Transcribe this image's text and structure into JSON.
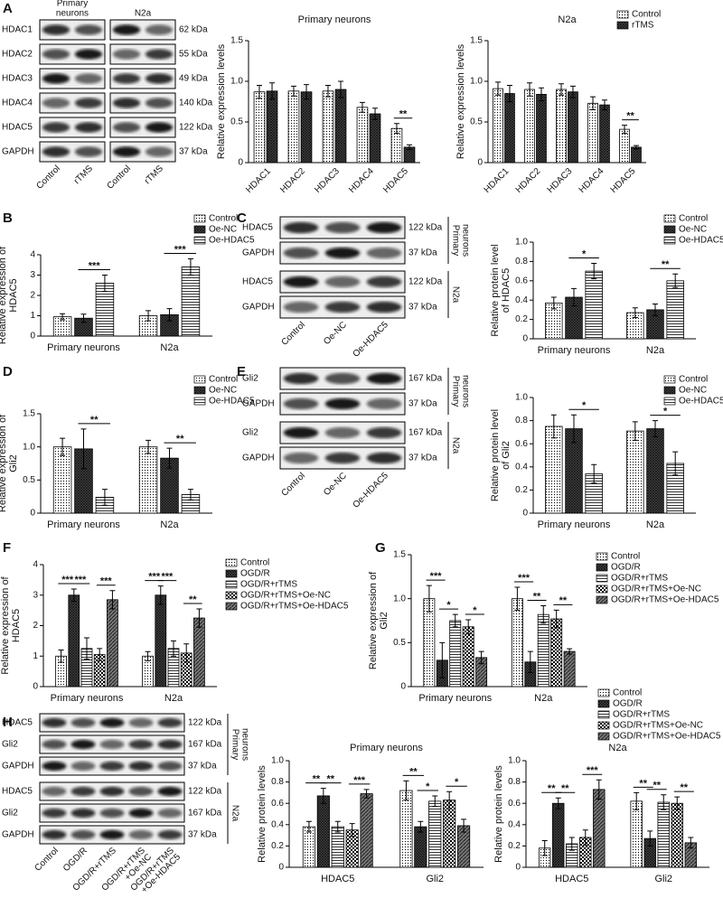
{
  "panel_labels": [
    "A",
    "B",
    "C",
    "D",
    "E",
    "F",
    "G",
    "H"
  ],
  "blots": [
    {
      "rows": [
        {
          "protein": "HDAC1",
          "size": "62 kDa"
        },
        {
          "protein": "HDAC2",
          "size": "55 kDa"
        },
        {
          "protein": "HDAC3",
          "size": "49 kDa"
        },
        {
          "protein": "HDAC4",
          "size": "140 kDa"
        },
        {
          "protein": "HDAC5",
          "size": "122 kDa"
        },
        {
          "protein": "GAPDH",
          "size": "37 kDa"
        }
      ],
      "lanes": [
        [
          "Control"
        ],
        [
          "rTMS"
        ],
        [
          "Control"
        ],
        [
          "rTMS"
        ]
      ],
      "groups": [
        [
          "Primary",
          "neurons"
        ],
        [
          "N2a"
        ]
      ]
    },
    {
      "rows": [
        {
          "protein": "HDAC5",
          "size": "122 kDa"
        },
        {
          "protein": "GAPDH",
          "size": "37 kDa"
        },
        {
          "protein": "HDAC5",
          "size": "122 kDa"
        },
        {
          "protein": "GAPDH",
          "size": "37 kDa"
        }
      ],
      "lanes": [
        [
          "Control"
        ],
        [
          "Oe-NC"
        ],
        [
          "Oe-HDAC5"
        ]
      ],
      "groups": [
        [
          "Primary",
          "neurons"
        ],
        [
          "N2a"
        ]
      ]
    },
    {
      "rows": [
        {
          "protein": "Gli2",
          "size": "167 kDa"
        },
        {
          "protein": "GAPDH",
          "size": "37 kDa"
        },
        {
          "protein": "Gli2",
          "size": "167 kDa"
        },
        {
          "protein": "GAPDH",
          "size": "37 kDa"
        }
      ],
      "lanes": [
        [
          "Control"
        ],
        [
          "Oe-NC"
        ],
        [
          "Oe-HDAC5"
        ]
      ],
      "groups": [
        [
          "Primary",
          "neurons"
        ],
        [
          "N2a"
        ]
      ]
    },
    {
      "rows": [
        {
          "protein": "HDAC5",
          "size": "122 kDa"
        },
        {
          "protein": "Gli2",
          "size": "167 kDa"
        },
        {
          "protein": "GAPDH",
          "size": "37 kDa"
        },
        {
          "protein": "HDAC5",
          "size": "122 kDa"
        },
        {
          "protein": "Gli2",
          "size": "167 kDa"
        },
        {
          "protein": "GAPDH",
          "size": "37 kDa"
        }
      ],
      "lanes": [
        [
          "Control"
        ],
        [
          "OGD/R"
        ],
        [
          "OGD/R+rTMS"
        ],
        [
          "OGD/R+rTMS",
          "+Oe-NC"
        ],
        [
          "OGD/R+rTMS",
          "+Oe-HDAC5"
        ]
      ],
      "groups": [
        [
          "Primary",
          "neurons"
        ],
        [
          "N2a"
        ]
      ]
    }
  ],
  "chart_data": [
    {
      "type": "bar",
      "title": "Primary neurons",
      "ylabel": [
        "Relative expression levels"
      ],
      "categories": [
        "HDAC1",
        "HDAC2",
        "HDAC3",
        "HDAC4",
        "HDAC5"
      ],
      "ylim": [
        0,
        1.5
      ],
      "yticks": [
        0,
        0.5,
        {
          "value": 1,
          "label": "1.0"
        },
        1.5
      ],
      "legend": false,
      "series": [
        {
          "name": "Control",
          "pattern": "dots",
          "values": [
            0.87,
            0.88,
            0.88,
            0.68,
            0.42
          ],
          "errors": [
            0.08,
            0.06,
            0.07,
            0.06,
            0.06
          ]
        },
        {
          "name": "rTMS",
          "pattern": "crosshatch",
          "values": [
            0.88,
            0.87,
            0.9,
            0.6,
            0.19
          ],
          "errors": [
            0.1,
            0.09,
            0.1,
            0.07,
            0.03
          ]
        }
      ],
      "significance": [
        {
          "category": 4,
          "from": 0,
          "to": 1,
          "label": "**"
        }
      ]
    },
    {
      "type": "bar",
      "title": "N2a",
      "ylabel": [
        "Relative expression levels"
      ],
      "categories": [
        "HDAC1",
        "HDAC2",
        "HDAC3",
        "HDAC4",
        "HDAC5"
      ],
      "ylim": [
        0,
        1.5
      ],
      "yticks": [
        0,
        0.5,
        {
          "value": 1,
          "label": "1.0"
        },
        1.5
      ],
      "legend": true,
      "series": [
        {
          "name": "Control",
          "pattern": "dots",
          "values": [
            0.91,
            0.9,
            0.9,
            0.73,
            0.41
          ],
          "errors": [
            0.08,
            0.08,
            0.07,
            0.08,
            0.05
          ]
        },
        {
          "name": "rTMS",
          "pattern": "crosshatch",
          "values": [
            0.85,
            0.84,
            0.87,
            0.71,
            0.19
          ],
          "errors": [
            0.1,
            0.08,
            0.07,
            0.06,
            0.02
          ]
        }
      ],
      "significance": [
        {
          "category": 4,
          "from": 0,
          "to": 1,
          "label": "**"
        }
      ]
    },
    {
      "type": "bar",
      "ylabel": [
        "Relative expression of",
        "HDAC5"
      ],
      "categories": [
        "Primary neurons",
        "N2a"
      ],
      "ylim": [
        0,
        4
      ],
      "yticks": [
        0,
        1,
        2,
        3,
        4
      ],
      "legend": true,
      "series": [
        {
          "name": "Control",
          "pattern": "dots",
          "values": [
            0.95,
            1.0
          ],
          "errors": [
            0.15,
            0.25
          ]
        },
        {
          "name": "Oe-NC",
          "pattern": "crosshatch",
          "values": [
            0.88,
            1.05
          ],
          "errors": [
            0.2,
            0.3
          ]
        },
        {
          "name": "Oe-HDAC5",
          "pattern": "hlines",
          "values": [
            2.6,
            3.4
          ],
          "errors": [
            0.4,
            0.4
          ]
        }
      ],
      "significance": [
        {
          "category": 0,
          "from": 1,
          "to": 2,
          "label": "***"
        },
        {
          "category": 1,
          "from": 1,
          "to": 2,
          "label": "***"
        }
      ]
    },
    {
      "type": "bar",
      "ylabel": [
        "Relative protein level",
        "of HDAC5"
      ],
      "categories": [
        "Primary neurons",
        "N2a"
      ],
      "ylim": [
        0,
        1
      ],
      "yticks": [
        0,
        0.2,
        0.4,
        0.6,
        0.8,
        {
          "value": 1,
          "label": "1.0"
        }
      ],
      "legend": true,
      "series": [
        {
          "name": "Control",
          "pattern": "dots",
          "values": [
            0.37,
            0.27
          ],
          "errors": [
            0.06,
            0.05
          ]
        },
        {
          "name": "Oe-NC",
          "pattern": "crosshatch",
          "values": [
            0.43,
            0.3
          ],
          "errors": [
            0.09,
            0.06
          ]
        },
        {
          "name": "Oe-HDAC5",
          "pattern": "hlines",
          "values": [
            0.7,
            0.6
          ],
          "errors": [
            0.08,
            0.07
          ]
        }
      ],
      "significance": [
        {
          "category": 0,
          "from": 1,
          "to": 2,
          "label": "*"
        },
        {
          "category": 1,
          "from": 1,
          "to": 2,
          "label": "**"
        }
      ]
    },
    {
      "type": "bar",
      "ylabel": [
        "Relative expression of",
        "Gli2"
      ],
      "categories": [
        "Primary neurons",
        "N2a"
      ],
      "ylim": [
        0,
        1.5
      ],
      "yticks": [
        0,
        0.5,
        {
          "value": 1,
          "label": "1.0"
        },
        1.5
      ],
      "legend": true,
      "series": [
        {
          "name": "Control",
          "pattern": "dots",
          "values": [
            1.0,
            1.0
          ],
          "errors": [
            0.13,
            0.1
          ]
        },
        {
          "name": "Oe-NC",
          "pattern": "crosshatch",
          "values": [
            0.97,
            0.83
          ],
          "errors": [
            0.3,
            0.15
          ]
        },
        {
          "name": "Oe-HDAC5",
          "pattern": "hlines",
          "values": [
            0.24,
            0.28
          ],
          "errors": [
            0.12,
            0.08
          ]
        }
      ],
      "significance": [
        {
          "category": 0,
          "from": 1,
          "to": 2,
          "label": "**"
        },
        {
          "category": 1,
          "from": 1,
          "to": 2,
          "label": "**"
        }
      ]
    },
    {
      "type": "bar",
      "ylabel": [
        "Relative protein level",
        "of Gli2"
      ],
      "categories": [
        "Primary neurons",
        "N2a"
      ],
      "ylim": [
        0,
        1
      ],
      "yticks": [
        0,
        0.2,
        0.4,
        0.6,
        0.8,
        {
          "value": 1,
          "label": "1.0"
        }
      ],
      "legend": true,
      "series": [
        {
          "name": "Control",
          "pattern": "dots",
          "values": [
            0.75,
            0.71
          ],
          "errors": [
            0.1,
            0.08
          ]
        },
        {
          "name": "Oe-NC",
          "pattern": "crosshatch",
          "values": [
            0.73,
            0.73
          ],
          "errors": [
            0.12,
            0.07
          ]
        },
        {
          "name": "Oe-HDAC5",
          "pattern": "hlines",
          "values": [
            0.34,
            0.43
          ],
          "errors": [
            0.08,
            0.1
          ]
        }
      ],
      "significance": [
        {
          "category": 0,
          "from": 1,
          "to": 2,
          "label": "*"
        },
        {
          "category": 1,
          "from": 1,
          "to": 2,
          "label": "*"
        }
      ]
    },
    {
      "type": "bar",
      "ylabel": [
        "Relative expression of",
        "HDAC5"
      ],
      "categories": [
        "Primary neurons",
        "N2a"
      ],
      "ylim": [
        0,
        4
      ],
      "yticks": [
        0,
        1,
        2,
        3,
        4
      ],
      "legend": true,
      "series": [
        {
          "name": "Control",
          "pattern": "dots",
          "values": [
            1.0,
            1.0
          ],
          "errors": [
            0.2,
            0.15
          ]
        },
        {
          "name": "OGD/R",
          "pattern": "crosshatch",
          "values": [
            3.0,
            3.0
          ],
          "errors": [
            0.2,
            0.3
          ]
        },
        {
          "name": "OGD/R+rTMS",
          "pattern": "hlines",
          "values": [
            1.25,
            1.25
          ],
          "errors": [
            0.35,
            0.25
          ]
        },
        {
          "name": "OGD/R+rTMS+Oe-NC",
          "pattern": "checker",
          "values": [
            1.05,
            1.1
          ],
          "errors": [
            0.2,
            0.3
          ]
        },
        {
          "name": "OGD/R+rTMS+Oe-HDAC5",
          "pattern": "diagonal",
          "values": [
            2.85,
            2.25
          ],
          "errors": [
            0.3,
            0.3
          ]
        }
      ],
      "significance": [
        {
          "category": 0,
          "from": 0,
          "to": 1,
          "label": "***"
        },
        {
          "category": 0,
          "from": 1,
          "to": 2,
          "label": "***"
        },
        {
          "category": 0,
          "from": 3,
          "to": 4,
          "label": "***"
        },
        {
          "category": 1,
          "from": 0,
          "to": 1,
          "label": "***"
        },
        {
          "category": 1,
          "from": 1,
          "to": 2,
          "label": "***"
        },
        {
          "category": 1,
          "from": 3,
          "to": 4,
          "label": "**"
        }
      ]
    },
    {
      "type": "bar",
      "ylabel": [
        "Relative expression of",
        "Gli2"
      ],
      "categories": [
        "Primary neurons",
        "N2a"
      ],
      "ylim": [
        0,
        1.5
      ],
      "yticks": [
        0,
        0.5,
        {
          "value": 1,
          "label": "1.0"
        },
        1.5
      ],
      "legend": true,
      "series": [
        {
          "name": "Control",
          "pattern": "dots",
          "values": [
            1.0,
            1.0
          ],
          "errors": [
            0.15,
            0.13
          ]
        },
        {
          "name": "OGD/R",
          "pattern": "crosshatch",
          "values": [
            0.3,
            0.28
          ],
          "errors": [
            0.2,
            0.12
          ]
        },
        {
          "name": "OGD/R+rTMS",
          "pattern": "hlines",
          "values": [
            0.75,
            0.82
          ],
          "errors": [
            0.07,
            0.1
          ]
        },
        {
          "name": "OGD/R+rTMS+Oe-NC",
          "pattern": "checker",
          "values": [
            0.68,
            0.77
          ],
          "errors": [
            0.08,
            0.1
          ]
        },
        {
          "name": "OGD/R+rTMS+Oe-HDAC5",
          "pattern": "diagonal",
          "values": [
            0.33,
            0.4
          ],
          "errors": [
            0.07,
            0.03
          ]
        }
      ],
      "significance": [
        {
          "category": 0,
          "from": 0,
          "to": 1,
          "label": "***"
        },
        {
          "category": 0,
          "from": 1,
          "to": 2,
          "label": "*"
        },
        {
          "category": 0,
          "from": 3,
          "to": 4,
          "label": "*"
        },
        {
          "category": 1,
          "from": 0,
          "to": 1,
          "label": "***"
        },
        {
          "category": 1,
          "from": 1,
          "to": 2,
          "label": "**"
        },
        {
          "category": 1,
          "from": 3,
          "to": 4,
          "label": "**"
        }
      ]
    },
    {
      "type": "bar",
      "title": "Primary neurons",
      "ylabel": [
        "Relative protein levels"
      ],
      "categories": [
        "HDAC5",
        "Gli2"
      ],
      "ylim": [
        0,
        1
      ],
      "yticks": [
        0,
        0.2,
        0.4,
        0.6,
        0.8,
        {
          "value": 1,
          "label": "1.0"
        }
      ],
      "legend": false,
      "series": [
        {
          "name": "Control",
          "pattern": "dots",
          "values": [
            0.38,
            0.72
          ],
          "errors": [
            0.05,
            0.09
          ]
        },
        {
          "name": "OGD/R",
          "pattern": "crosshatch",
          "values": [
            0.67,
            0.38
          ],
          "errors": [
            0.07,
            0.05
          ]
        },
        {
          "name": "OGD/R+rTMS",
          "pattern": "hlines",
          "values": [
            0.38,
            0.62
          ],
          "errors": [
            0.05,
            0.05
          ]
        },
        {
          "name": "OGD/R+rTMS+Oe-NC",
          "pattern": "checker",
          "values": [
            0.35,
            0.63
          ],
          "errors": [
            0.06,
            0.08
          ]
        },
        {
          "name": "OGD/R+rTMS+Oe-HDAC5",
          "pattern": "diagonal",
          "values": [
            0.69,
            0.39
          ],
          "errors": [
            0.04,
            0.06
          ]
        }
      ],
      "significance": [
        {
          "category": 0,
          "from": 0,
          "to": 1,
          "label": "**"
        },
        {
          "category": 0,
          "from": 1,
          "to": 2,
          "label": "**"
        },
        {
          "category": 0,
          "from": 3,
          "to": 4,
          "label": "***"
        },
        {
          "category": 1,
          "from": 0,
          "to": 1,
          "label": "**"
        },
        {
          "category": 1,
          "from": 1,
          "to": 2,
          "label": "*"
        },
        {
          "category": 1,
          "from": 3,
          "to": 4,
          "label": "*"
        }
      ]
    },
    {
      "type": "bar",
      "title": "N2a",
      "ylabel": [
        "Relative protein levels"
      ],
      "categories": [
        "HDAC5",
        "Gli2"
      ],
      "ylim": [
        0,
        1
      ],
      "yticks": [
        0,
        0.2,
        0.4,
        0.6,
        0.8,
        {
          "value": 1,
          "label": "1.0"
        }
      ],
      "legend": true,
      "series": [
        {
          "name": "Control",
          "pattern": "dots",
          "values": [
            0.18,
            0.62
          ],
          "errors": [
            0.07,
            0.08
          ]
        },
        {
          "name": "OGD/R",
          "pattern": "crosshatch",
          "values": [
            0.6,
            0.27
          ],
          "errors": [
            0.05,
            0.07
          ]
        },
        {
          "name": "OGD/R+rTMS",
          "pattern": "hlines",
          "values": [
            0.22,
            0.61
          ],
          "errors": [
            0.06,
            0.07
          ]
        },
        {
          "name": "OGD/R+rTMS+Oe-NC",
          "pattern": "checker",
          "values": [
            0.28,
            0.6
          ],
          "errors": [
            0.07,
            0.06
          ]
        },
        {
          "name": "OGD/R+rTMS+Oe-HDAC5",
          "pattern": "diagonal",
          "values": [
            0.73,
            0.23
          ],
          "errors": [
            0.09,
            0.05
          ]
        }
      ],
      "significance": [
        {
          "category": 0,
          "from": 0,
          "to": 1,
          "label": "**"
        },
        {
          "category": 0,
          "from": 1,
          "to": 2,
          "label": "**"
        },
        {
          "category": 0,
          "from": 3,
          "to": 4,
          "label": "***"
        },
        {
          "category": 1,
          "from": 0,
          "to": 1,
          "label": "**"
        },
        {
          "category": 1,
          "from": 1,
          "to": 2,
          "label": "**"
        },
        {
          "category": 1,
          "from": 3,
          "to": 4,
          "label": "**"
        }
      ]
    }
  ]
}
